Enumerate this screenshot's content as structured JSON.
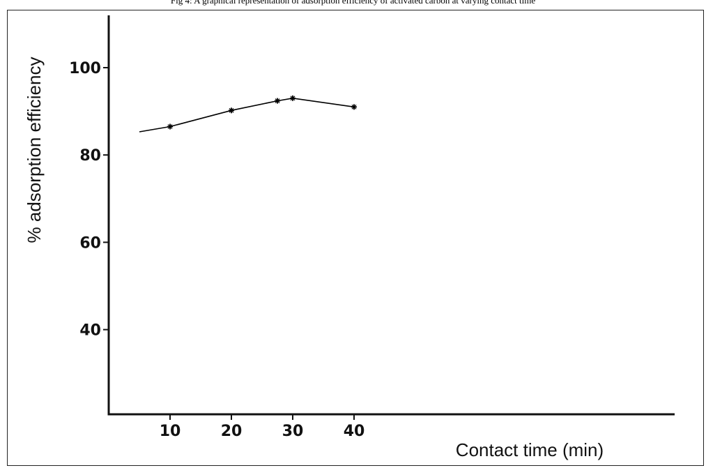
{
  "caption": "Fig 4: A graphical representation of adsorption efficiency of activated carbon at varying contact time",
  "chart_data": {
    "type": "line",
    "title": "",
    "xlabel": "Contact time (min)",
    "ylabel": "% adsorption efficiency",
    "x_ticks": [
      "10",
      "20",
      "30",
      "40"
    ],
    "y_ticks": [
      "40",
      "60",
      "80",
      "100"
    ],
    "xlim": [
      0,
      40
    ],
    "ylim": [
      21,
      112
    ],
    "grid": false,
    "line_points": [
      {
        "x": 5,
        "y": 85.3
      },
      {
        "x": 10,
        "y": 86.5
      },
      {
        "x": 20,
        "y": 90.2
      },
      {
        "x": 27.5,
        "y": 92.4
      },
      {
        "x": 30,
        "y": 93.0
      },
      {
        "x": 40,
        "y": 91.0
      }
    ],
    "markers": [
      {
        "x": 10,
        "y": 86.5
      },
      {
        "x": 20,
        "y": 90.2
      },
      {
        "x": 27.5,
        "y": 92.4
      },
      {
        "x": 30,
        "y": 93.0
      },
      {
        "x": 40,
        "y": 91.0
      }
    ],
    "color": "#000000"
  }
}
